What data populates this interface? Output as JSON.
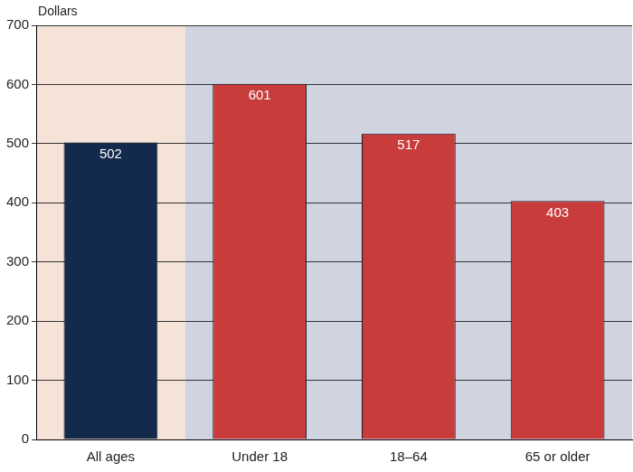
{
  "chart_data": {
    "type": "bar",
    "ylabel": "Dollars",
    "categories": [
      "All ages",
      "Under 18",
      "18–64",
      "65 or older"
    ],
    "values": [
      502,
      601,
      517,
      403
    ],
    "colors": [
      "#142a4c",
      "#c83c3c",
      "#c83c3c",
      "#c83c3c"
    ],
    "ylim": [
      0,
      700
    ],
    "yticks": [
      0,
      100,
      200,
      300,
      400,
      500,
      600,
      700
    ],
    "grid": true,
    "data_labels": true
  }
}
